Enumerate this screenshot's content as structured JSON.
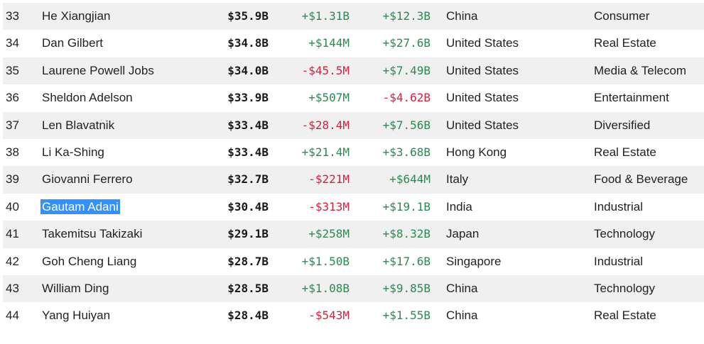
{
  "colors": {
    "positive": "#2a8a52",
    "negative": "#d4213d",
    "selection": "#3390ff",
    "row_shade": "#f0f0f0"
  },
  "rows": [
    {
      "rank": "33",
      "name": "He Xiangjian",
      "net_worth": "$35.9B",
      "day_change": "+$1.31B",
      "day_sign": "pos",
      "ytd_change": "+$12.3B",
      "ytd_sign": "pos",
      "country": "China",
      "industry": "Consumer"
    },
    {
      "rank": "34",
      "name": "Dan Gilbert",
      "net_worth": "$34.8B",
      "day_change": "+$144M",
      "day_sign": "pos",
      "ytd_change": "+$27.6B",
      "ytd_sign": "pos",
      "country": "United States",
      "industry": "Real Estate"
    },
    {
      "rank": "35",
      "name": "Laurene Powell Jobs",
      "net_worth": "$34.0B",
      "day_change": "-$45.5M",
      "day_sign": "neg",
      "ytd_change": "+$7.49B",
      "ytd_sign": "pos",
      "country": "United States",
      "industry": "Media & Telecom"
    },
    {
      "rank": "36",
      "name": "Sheldon Adelson",
      "net_worth": "$33.9B",
      "day_change": "+$507M",
      "day_sign": "pos",
      "ytd_change": "-$4.62B",
      "ytd_sign": "neg",
      "country": "United States",
      "industry": "Entertainment"
    },
    {
      "rank": "37",
      "name": "Len Blavatnik",
      "net_worth": "$33.4B",
      "day_change": "-$28.4M",
      "day_sign": "neg",
      "ytd_change": "+$7.56B",
      "ytd_sign": "pos",
      "country": "United States",
      "industry": "Diversified"
    },
    {
      "rank": "38",
      "name": "Li Ka-Shing",
      "net_worth": "$33.4B",
      "day_change": "+$21.4M",
      "day_sign": "pos",
      "ytd_change": "+$3.68B",
      "ytd_sign": "pos",
      "country": "Hong Kong",
      "industry": "Real Estate"
    },
    {
      "rank": "39",
      "name": "Giovanni Ferrero",
      "net_worth": "$32.7B",
      "day_change": "-$221M",
      "day_sign": "neg",
      "ytd_change": "+$644M",
      "ytd_sign": "pos",
      "country": "Italy",
      "industry": "Food & Beverage"
    },
    {
      "rank": "40",
      "name": "Gautam Adani",
      "net_worth": "$30.4B",
      "day_change": "-$313M",
      "day_sign": "neg",
      "ytd_change": "+$19.1B",
      "ytd_sign": "pos",
      "country": "India",
      "industry": "Industrial",
      "selected": true
    },
    {
      "rank": "41",
      "name": "Takemitsu Takizaki",
      "net_worth": "$29.1B",
      "day_change": "+$258M",
      "day_sign": "pos",
      "ytd_change": "+$8.32B",
      "ytd_sign": "pos",
      "country": "Japan",
      "industry": "Technology"
    },
    {
      "rank": "42",
      "name": "Goh Cheng Liang",
      "net_worth": "$28.7B",
      "day_change": "+$1.50B",
      "day_sign": "pos",
      "ytd_change": "+$17.6B",
      "ytd_sign": "pos",
      "country": "Singapore",
      "industry": "Industrial"
    },
    {
      "rank": "43",
      "name": "William Ding",
      "net_worth": "$28.5B",
      "day_change": "+$1.08B",
      "day_sign": "pos",
      "ytd_change": "+$9.85B",
      "ytd_sign": "pos",
      "country": "China",
      "industry": "Technology"
    },
    {
      "rank": "44",
      "name": "Yang Huiyan",
      "net_worth": "$28.4B",
      "day_change": "-$543M",
      "day_sign": "neg",
      "ytd_change": "+$1.55B",
      "ytd_sign": "pos",
      "country": "China",
      "industry": "Real Estate"
    }
  ]
}
